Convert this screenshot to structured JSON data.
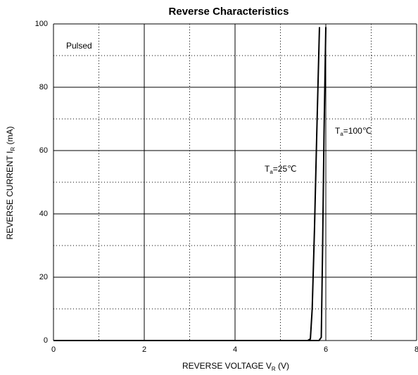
{
  "chart_data": {
    "type": "line",
    "title": "Reverse   Characteristics",
    "x_label": {
      "main": "REVERSE VOLTAGE   V",
      "sub": "R",
      "tail": "   (V)"
    },
    "y_label": {
      "main": "REVERSE CURRENT   I",
      "sub": "R",
      "tail": "   (mA)"
    },
    "annotation": "Pulsed",
    "xlim": [
      0,
      8
    ],
    "ylim": [
      0,
      100
    ],
    "xticks": [
      0,
      2,
      4,
      6,
      8
    ],
    "yticks": [
      0,
      20,
      40,
      60,
      80,
      100
    ],
    "x_minor_grid": [
      1,
      3,
      5,
      7
    ],
    "y_minor_grid": [
      10,
      30,
      50,
      70,
      90
    ],
    "grid": true,
    "series": [
      {
        "label": {
          "main": "T",
          "sub": "a",
          "tail": "=25℃"
        },
        "color": "#000000",
        "x": [
          0,
          5.6,
          5.66,
          5.7,
          5.75,
          5.8,
          5.86
        ],
        "values": [
          0,
          0,
          0.5,
          10,
          35,
          65,
          99
        ]
      },
      {
        "label": {
          "main": "T",
          "sub": "a",
          "tail": "=100℃"
        },
        "color": "#000000",
        "x": [
          0,
          5.85,
          5.9,
          5.93,
          5.96,
          6.0
        ],
        "values": [
          0,
          0,
          1,
          30,
          65,
          99
        ]
      }
    ]
  }
}
